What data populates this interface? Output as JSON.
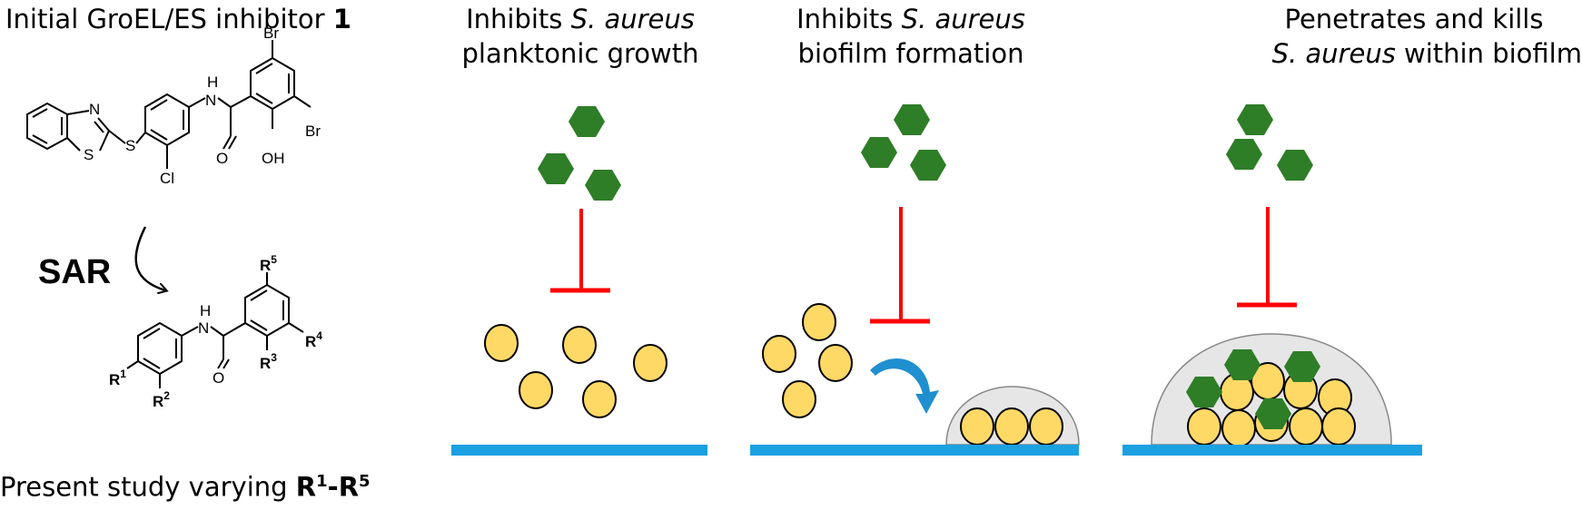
{
  "left": {
    "title_prefix": "Initial GroEL/ES inhibitor ",
    "title_bold": "1",
    "sar_label": "SAR",
    "footer_prefix": "Present study varying ",
    "footer_r1": "R",
    "footer_r1_sup": "1",
    "footer_dash": "-",
    "footer_r5": "R",
    "footer_r5_sup": "5",
    "compound1_atoms": {
      "br_top": "Br",
      "br_right": "Br",
      "nh": "H",
      "n_amide": "N",
      "o": "O",
      "oh": "OH",
      "s_ring": "S",
      "n_ring": "N",
      "s_link": "S",
      "cl": "Cl"
    },
    "scaffold_atoms": {
      "r1": "R",
      "r1_sup": "1",
      "r2": "R",
      "r2_sup": "2",
      "r3": "R",
      "r3_sup": "3",
      "r4": "R",
      "r4_sup": "4",
      "r5": "R",
      "r5_sup": "5",
      "nh": "H",
      "n_amide": "N",
      "o": "O"
    }
  },
  "panels": [
    {
      "line1_prefix": "Inhibits ",
      "line1_italic": "S. aureus",
      "line1_suffix": "",
      "line2_prefix": "",
      "line2_italic": "",
      "line2_suffix": "planktonic growth"
    },
    {
      "line1_prefix": "Inhibits ",
      "line1_italic": "S. aureus",
      "line1_suffix": "",
      "line2_prefix": "",
      "line2_italic": "",
      "line2_suffix": "biofilm formation"
    },
    {
      "line1_prefix": "",
      "line1_italic": "",
      "line1_suffix": "Penetrates and kills",
      "line2_prefix": "",
      "line2_italic": "S. aureus",
      "line2_suffix": " within biofilm"
    }
  ],
  "colors": {
    "inhibitor_hexagon": "#2e7d27",
    "bacteria_fill": "#ffd966",
    "inhibition_bar": "#ff0000",
    "surface": "#1ba1e2",
    "biofilm_matrix": "#e6e6e6",
    "curved_arrow": "#1f8fd0"
  }
}
